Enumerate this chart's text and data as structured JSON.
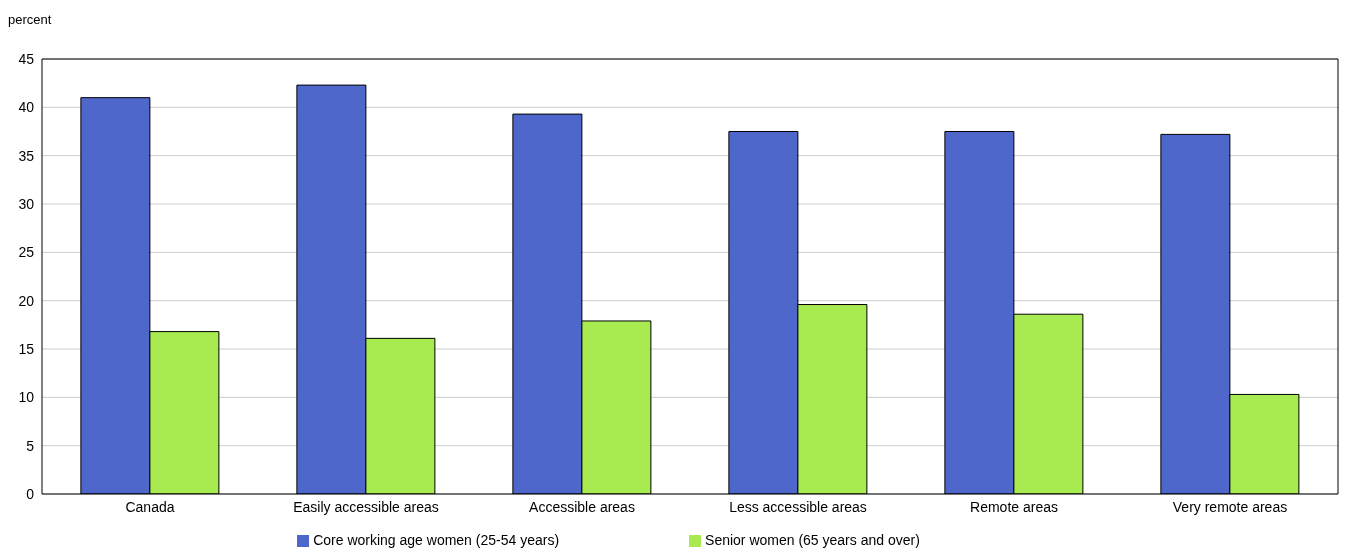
{
  "chart_data": {
    "type": "bar",
    "ylabel": "percent",
    "categories": [
      "Canada",
      "Easily accessible areas",
      "Accessible areas",
      "Less accessible areas",
      "Remote areas",
      "Very remote areas"
    ],
    "series": [
      {
        "name": "Core working age women (25-54 years)",
        "color": "#4f67cb",
        "values": [
          41.0,
          42.3,
          39.3,
          37.5,
          37.5,
          37.2
        ]
      },
      {
        "name": "Senior women (65 years and over)",
        "color": "#a8eb50",
        "values": [
          16.8,
          16.1,
          17.9,
          19.6,
          18.6,
          10.3
        ]
      }
    ],
    "ylim": [
      0,
      45
    ],
    "yticks": [
      0,
      5,
      10,
      15,
      20,
      25,
      30,
      35,
      40,
      45
    ],
    "grid": "y",
    "legend": "bottom"
  }
}
